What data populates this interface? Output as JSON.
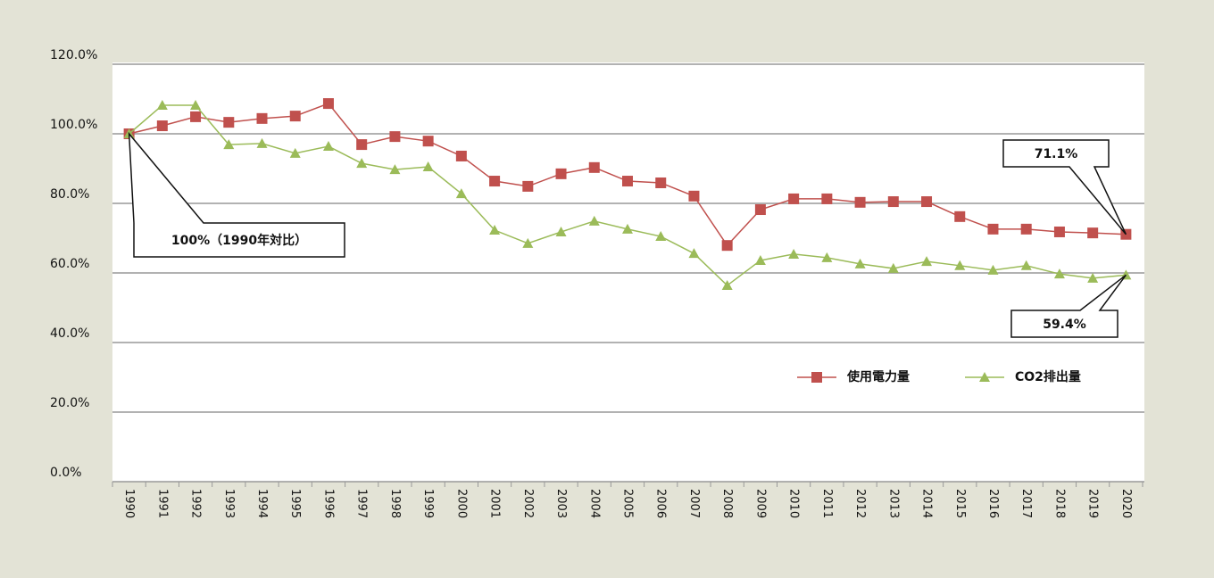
{
  "chart_data": {
    "type": "line",
    "categories": [
      "1990",
      "1991",
      "1992",
      "1993",
      "1994",
      "1995",
      "1996",
      "1997",
      "1998",
      "1999",
      "2000",
      "2001",
      "2002",
      "2003",
      "2004",
      "2005",
      "2006",
      "2007",
      "2008",
      "2009",
      "2010",
      "2011",
      "2012",
      "2013",
      "2014",
      "2015",
      "2016",
      "2017",
      "2018",
      "2019",
      "2020"
    ],
    "series": [
      {
        "name": "使用電力量",
        "color": "#c0504d",
        "marker": "square",
        "values": [
          100,
          102.3,
          104.9,
          103.3,
          104.4,
          105.1,
          108.7,
          96.9,
          99.2,
          97.9,
          93.6,
          86.4,
          84.9,
          88.5,
          90.3,
          86.4,
          85.9,
          82.1,
          67.9,
          78.2,
          81.3,
          81.3,
          80.3,
          80.5,
          80.5,
          76.2,
          72.6,
          72.6,
          71.8,
          71.5,
          71.1
        ]
      },
      {
        "name": "CO2排出量",
        "color": "#9bbb59",
        "marker": "triangle",
        "values": [
          100,
          108.2,
          108.2,
          96.9,
          97.2,
          94.4,
          96.4,
          91.5,
          89.7,
          90.5,
          82.8,
          72.3,
          68.5,
          71.8,
          74.9,
          72.6,
          70.5,
          65.6,
          56.4,
          63.6,
          65.4,
          64.4,
          62.6,
          61.3,
          63.3,
          62.1,
          60.8,
          62.1,
          59.7,
          58.5,
          59.4
        ]
      }
    ],
    "ylim": [
      0,
      120
    ],
    "yticks": [
      {
        "value": 0,
        "label": "0.0%"
      },
      {
        "value": 20,
        "label": "20.0%"
      },
      {
        "value": 40,
        "label": "40.0%"
      },
      {
        "value": 60,
        "label": "60.0%"
      },
      {
        "value": 80,
        "label": "80.0%"
      },
      {
        "value": 100,
        "label": "100.0%"
      },
      {
        "value": 120,
        "label": "120.0%"
      }
    ],
    "grid": true,
    "legend": "lower right",
    "annotations": [
      "100%（1990年対比）",
      "71.1%",
      "59.4%"
    ]
  }
}
